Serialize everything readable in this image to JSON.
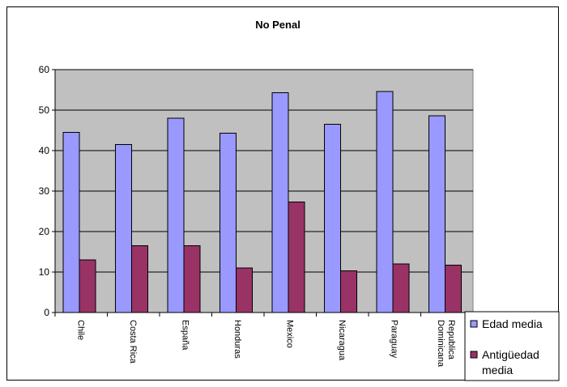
{
  "chart_data": {
    "type": "bar",
    "title": "No Penal",
    "xlabel": "",
    "ylabel": "",
    "ylim": [
      0,
      60
    ],
    "yticks": [
      0,
      10,
      20,
      30,
      40,
      50,
      60
    ],
    "grid": true,
    "legend_position": "right",
    "plot_background": "#c0c0c0",
    "categories": [
      "Chile",
      "Costa Rica",
      "España",
      "Honduras",
      "Mexico",
      "Nicaragua",
      "Paraguay",
      "Republica Dominicana"
    ],
    "category_lines": [
      [
        "Chile"
      ],
      [
        "Costa Rica"
      ],
      [
        "España"
      ],
      [
        "Honduras"
      ],
      [
        "Mexico"
      ],
      [
        "Nicaragua"
      ],
      [
        "Paraguay"
      ],
      [
        "Republica",
        "Dominicana"
      ]
    ],
    "series": [
      {
        "name": "Edad media",
        "name_lines": [
          "Edad media"
        ],
        "color": "#9999ff",
        "values": [
          44.5,
          41.5,
          48,
          44.3,
          54.3,
          46.5,
          54.6,
          48.6
        ]
      },
      {
        "name": "Antigüedad media",
        "name_lines": [
          "Antigüedad",
          "media"
        ],
        "color": "#993366",
        "values": [
          13,
          16.5,
          16.5,
          11,
          27.3,
          10.3,
          12,
          11.7
        ]
      }
    ]
  }
}
